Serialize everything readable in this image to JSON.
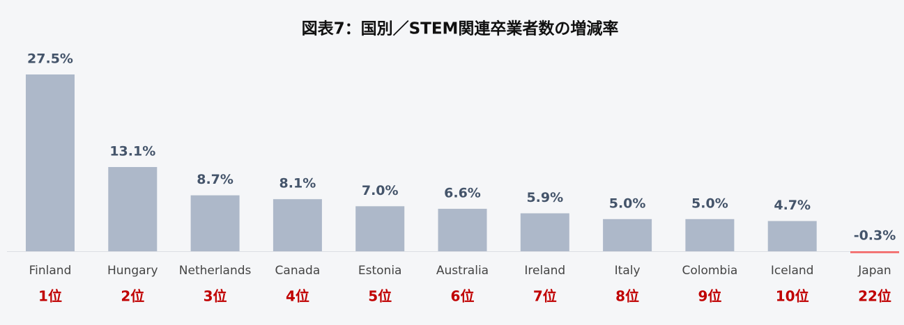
{
  "chart_data": {
    "type": "bar",
    "title": "図表7：国別／STEM関連卒業者数の増減率",
    "categories": [
      "Finland",
      "Hungary",
      "Netherlands",
      "Canada",
      "Estonia",
      "Australia",
      "Ireland",
      "Italy",
      "Colombia",
      "Iceland",
      "Japan"
    ],
    "values": [
      27.5,
      13.1,
      8.7,
      8.1,
      7.0,
      6.6,
      5.9,
      5.0,
      5.0,
      4.7,
      -0.3
    ],
    "value_labels": [
      "27.5%",
      "13.1%",
      "8.7%",
      "8.1%",
      "7.0%",
      "6.6%",
      "5.9%",
      "5.0%",
      "5.0%",
      "4.7%",
      "-0.3%"
    ],
    "ranks": [
      "1位",
      "2位",
      "3位",
      "4位",
      "5位",
      "6位",
      "7位",
      "8位",
      "9位",
      "10位",
      "22位"
    ],
    "colors": [
      "#adb8c9",
      "#adb8c9",
      "#adb8c9",
      "#adb8c9",
      "#adb8c9",
      "#adb8c9",
      "#adb8c9",
      "#adb8c9",
      "#adb8c9",
      "#adb8c9",
      "#f36b6b"
    ]
  }
}
